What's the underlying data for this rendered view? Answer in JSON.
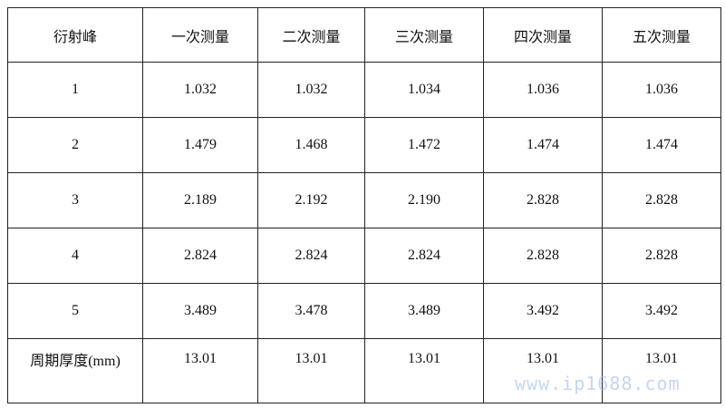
{
  "table": {
    "headers": [
      "衍射峰",
      "一次测量",
      "二次测量",
      "三次测量",
      "四次测量",
      "五次测量"
    ],
    "rows": [
      [
        "1",
        "1.032",
        "1.032",
        "1.034",
        "1.036",
        "1.036"
      ],
      [
        "2",
        "1.479",
        "1.468",
        "1.472",
        "1.474",
        "1.474"
      ],
      [
        "3",
        "2.189",
        "2.192",
        "2.190",
        "2.828",
        "2.828"
      ],
      [
        "4",
        "2.824",
        "2.824",
        "2.824",
        "2.828",
        "2.828"
      ],
      [
        "5",
        "3.489",
        "3.478",
        "3.489",
        "3.492",
        "3.492"
      ],
      [
        "周期厚度(mm)",
        "13.01",
        "13.01",
        "13.01",
        "13.01",
        "13.01"
      ]
    ]
  },
  "watermark": "www.ip1688.com"
}
